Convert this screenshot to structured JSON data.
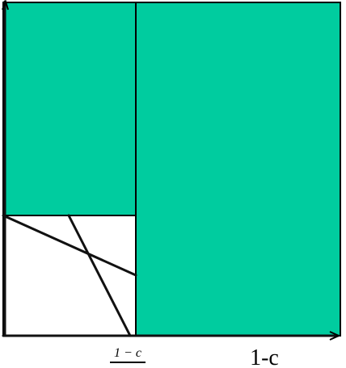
{
  "colors": {
    "fill": "#00cc9f",
    "background": "#ffffff",
    "lines": "#000000"
  },
  "labels": {
    "fraction_numerator": "1 − c",
    "axis_right_label": "1-c"
  }
}
